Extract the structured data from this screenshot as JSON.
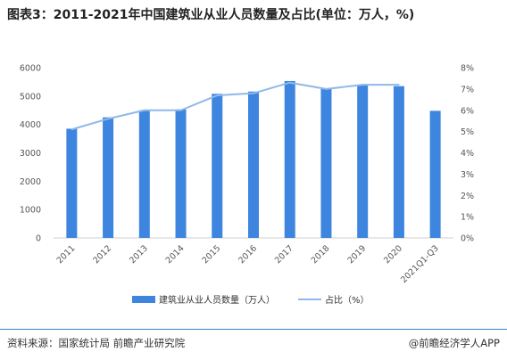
{
  "title": "图表3：2011-2021年中国建筑业从业人员数量及占比(单位：万人，%)",
  "source": "资料来源：国家统计局 前瞻产业研究院",
  "brand": "@前瞻经济学人APP",
  "colors": {
    "bar": "#3d85de",
    "line": "#8fb8ea",
    "accent": "#3b7fd1"
  },
  "chart_data": {
    "type": "bar",
    "categories": [
      "2011",
      "2012",
      "2013",
      "2014",
      "2015",
      "2016",
      "2017",
      "2018",
      "2019",
      "2020",
      "2021Q1-Q3"
    ],
    "series": [
      {
        "name": "建筑业从业人员数量（万人）",
        "type": "bar",
        "axis": "left",
        "values": [
          3850,
          4250,
          4500,
          4530,
          5080,
          5160,
          5530,
          5250,
          5400,
          5350,
          4480
        ]
      },
      {
        "name": "占比（%）",
        "type": "line",
        "axis": "right",
        "values": [
          5.1,
          5.6,
          6.0,
          6.0,
          6.7,
          6.8,
          7.3,
          7.0,
          7.2,
          7.2,
          null
        ]
      }
    ],
    "y_left": {
      "range": [
        0,
        6000
      ],
      "ticks": [
        "0",
        "1000",
        "2000",
        "3000",
        "4000",
        "5000",
        "6000"
      ]
    },
    "y_right": {
      "range": [
        0,
        8
      ],
      "ticks": [
        "0%",
        "1%",
        "2%",
        "3%",
        "4%",
        "5%",
        "6%",
        "7%",
        "8%"
      ]
    },
    "grid": false,
    "legend_position": "bottom"
  }
}
